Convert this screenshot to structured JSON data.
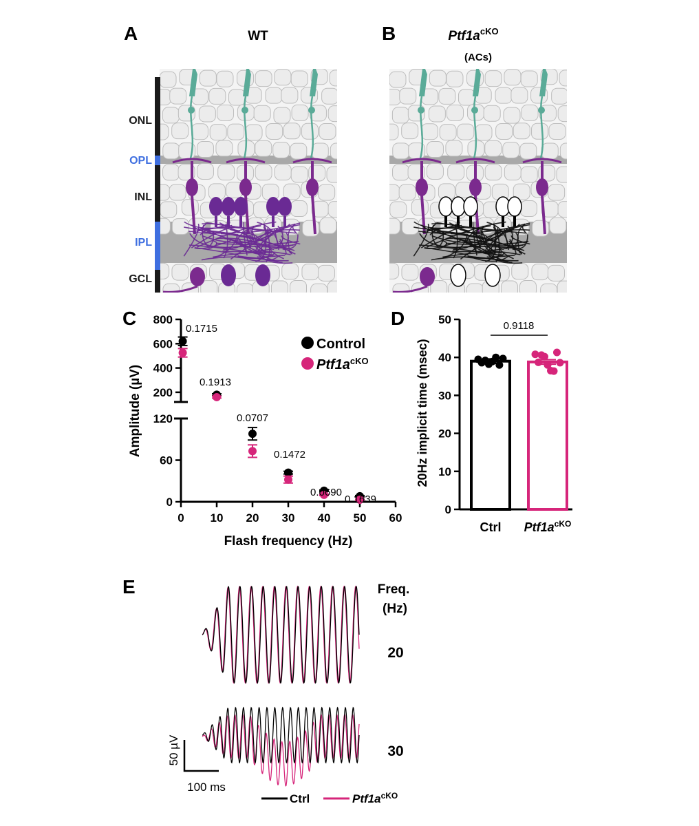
{
  "panels": {
    "A": {
      "letter": "A",
      "title": "WT",
      "layers": [
        {
          "label": "ONL",
          "color": "#1a1a1a"
        },
        {
          "label": "OPL",
          "color": "#3f6fe0"
        },
        {
          "label": "INL",
          "color": "#1a1a1a"
        },
        {
          "label": "IPL",
          "color": "#3f6fe0"
        },
        {
          "label": "GCL",
          "color": "#1a1a1a"
        }
      ]
    },
    "B": {
      "letter": "B",
      "title_main": "Ptf1a",
      "title_sup": "cKO",
      "subtitle": "(ACs)"
    },
    "C": {
      "letter": "C",
      "legend": {
        "control": "Control",
        "cko_main": "Ptf1a",
        "cko_sup": "cKO"
      }
    },
    "D": {
      "letter": "D",
      "p_value": "0.9118"
    },
    "E": {
      "letter": "E",
      "freq_title_line1": "Freq.",
      "freq_title_line2": "(Hz)",
      "freq_labels": [
        "20",
        "30"
      ],
      "scale_y": "50 µV",
      "scale_x": "100 ms",
      "legend": {
        "ctrl": "Ctrl",
        "cko_main": "Ptf1a",
        "cko_sup": "cKO"
      }
    }
  },
  "colors": {
    "control": "#000000",
    "cko": "#d6257a",
    "photoreceptor": "#5aab98",
    "bipolar": "#7b2a8e",
    "amacrine": "#6a2a94",
    "cell_fill": "#ececec",
    "plexiform": "#a9a9a9"
  },
  "chart_data": [
    {
      "type": "scatter",
      "panel": "C",
      "xlabel": "Flash frequency (Hz)",
      "ylabel": "Amplitude (µV)",
      "xlim": [
        0,
        60
      ],
      "x_ticks": [
        "0",
        "10",
        "20",
        "30",
        "40",
        "50",
        "60"
      ],
      "y_ticks_upper": [
        "200",
        "400",
        "600",
        "800"
      ],
      "y_ticks_lower": [
        "0",
        "60",
        "120"
      ],
      "axis_break": true,
      "x": [
        0.5,
        10,
        20,
        30,
        40,
        50
      ],
      "series": [
        {
          "name": "Control",
          "values": [
            620,
            180,
            98,
            42,
            16,
            8
          ],
          "errors": [
            35,
            8,
            9,
            2,
            1,
            1
          ]
        },
        {
          "name": "Ptf1a cKO",
          "values": [
            525,
            160,
            73,
            32,
            10,
            3
          ],
          "errors": [
            35,
            8,
            9,
            5,
            1,
            1
          ]
        }
      ],
      "p_values": [
        "0.1715",
        "0.1913",
        "0.0707",
        "0.1472",
        "0.0690",
        "0.1639"
      ]
    },
    {
      "type": "bar",
      "panel": "D",
      "ylabel": "20Hz implicit time (msec)",
      "ylim": [
        0,
        50
      ],
      "y_ticks": [
        "0",
        "10",
        "20",
        "30",
        "40",
        "50"
      ],
      "categories": [
        "Ctrl",
        "Ptf1a"
      ],
      "category_sup": [
        "",
        "cKO"
      ],
      "values": [
        39,
        38.8
      ],
      "points": [
        [
          39.5,
          38.6,
          39.2,
          38.2,
          38.9,
          40.0,
          38.0,
          39.7
        ],
        [
          40.8,
          38.7,
          40.6,
          40.2,
          38.0,
          36.5,
          36.4,
          41.3,
          38.6
        ]
      ],
      "p_value": "0.9118"
    }
  ]
}
